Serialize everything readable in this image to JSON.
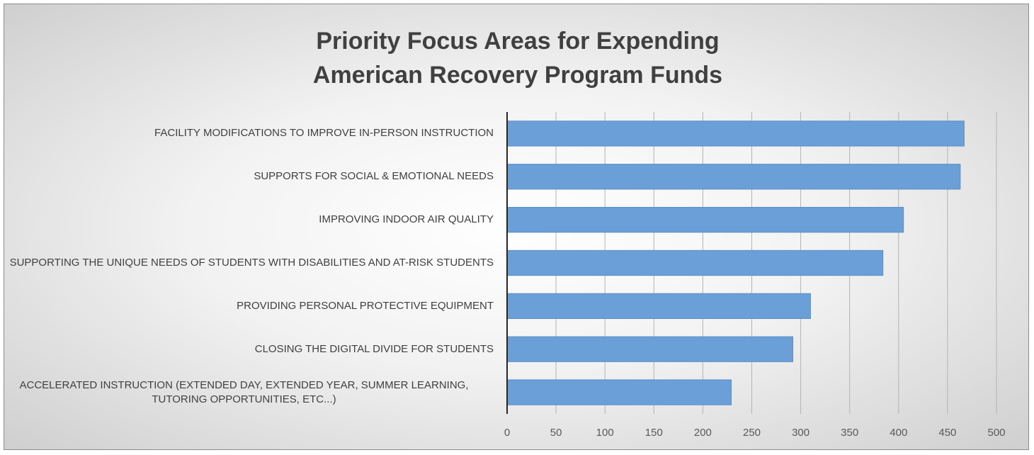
{
  "chart_data": {
    "type": "bar",
    "orientation": "horizontal",
    "title": "Priority Focus Areas for Expending American Recovery Program Funds",
    "categories": [
      "FACILITY MODIFICATIONS TO IMPROVE IN-PERSON INSTRUCTION",
      "SUPPORTS FOR SOCIAL & EMOTIONAL NEEDS",
      "IMPROVING INDOOR AIR QUALITY",
      "SUPPORTING THE UNIQUE NEEDS OF STUDENTS WITH DISABILITIES AND AT-RISK STUDENTS",
      "PROVIDING PERSONAL PROTECTIVE EQUIPMENT",
      "CLOSING THE DIGITAL DIVIDE FOR STUDENTS",
      "ACCELERATED INSTRUCTION (EXTENDED DAY, EXTENDED YEAR, SUMMER LEARNING, TUTORING OPPORTUNITIES, ETC...)"
    ],
    "values": [
      467,
      463,
      405,
      384,
      310,
      292,
      229
    ],
    "color": "#6a9fd8",
    "xlim": [
      0,
      500
    ],
    "xticks": [
      0,
      50,
      100,
      150,
      200,
      250,
      300,
      350,
      400,
      450,
      500
    ],
    "grid": true
  }
}
